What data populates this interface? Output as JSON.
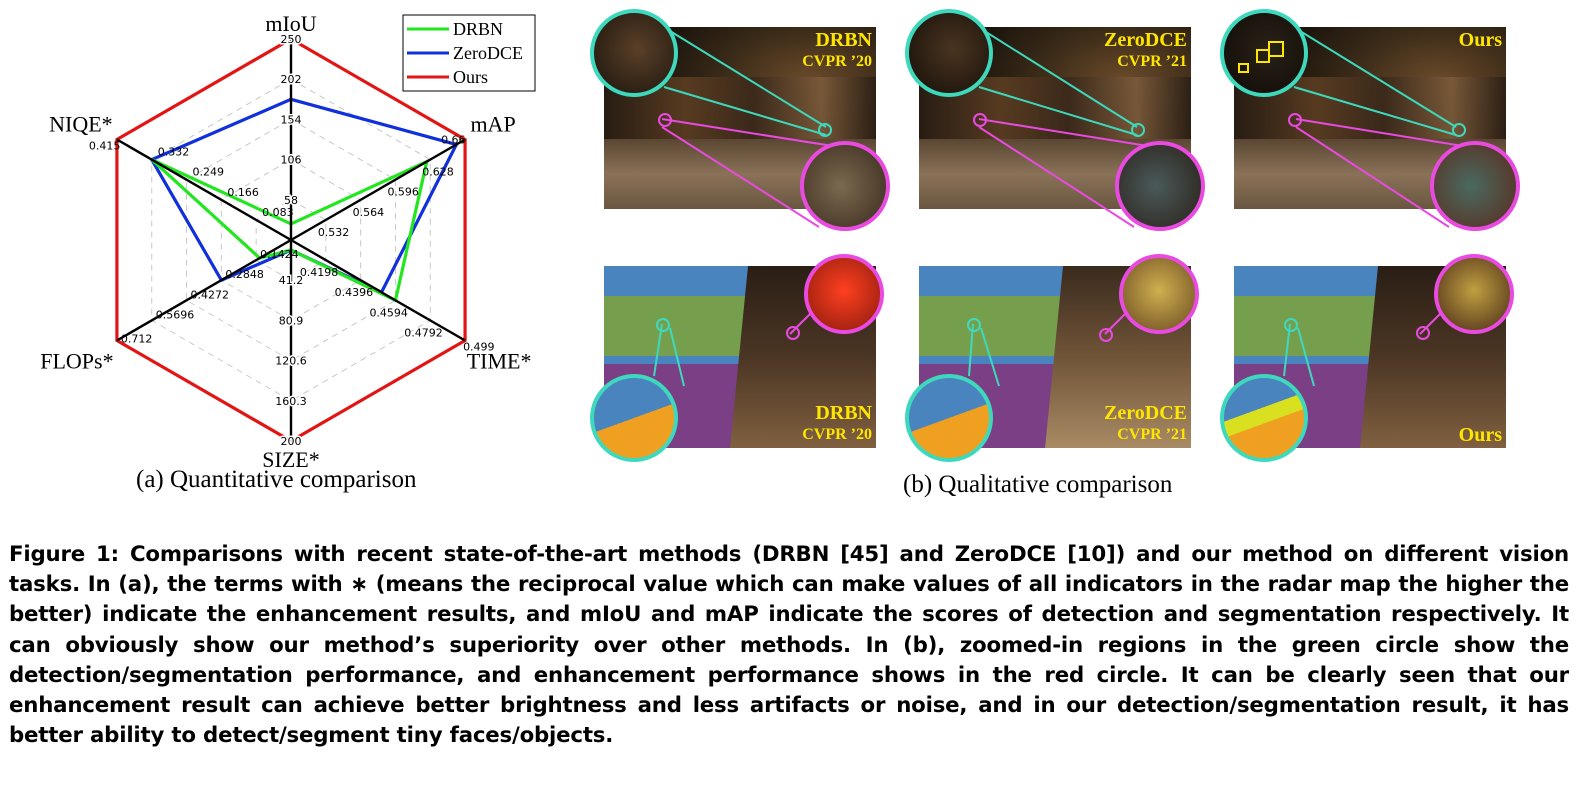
{
  "chart_data": {
    "type": "radar",
    "axes": [
      {
        "name": "mIoU",
        "ticks": [
          "58",
          "106",
          "154",
          "202",
          "250"
        ]
      },
      {
        "name": "mAP",
        "ticks": [
          "0.532",
          "0.564",
          "0.596",
          "0.628",
          "0.66"
        ]
      },
      {
        "name": "TIME*",
        "ticks": [
          "0.4198",
          "0.4396",
          "0.4594",
          "0.4792",
          "0.499"
        ]
      },
      {
        "name": "SIZE*",
        "ticks": [
          "41.2",
          "80.9",
          "120.6",
          "160.3",
          "200"
        ]
      },
      {
        "name": "FLOPs*",
        "ticks": [
          "0.1424",
          "0.2848",
          "0.4272",
          "0.5696",
          "0.712"
        ]
      },
      {
        "name": "NIQE*",
        "ticks": [
          "0.083",
          "0.166",
          "0.249",
          "0.332",
          "0.415"
        ]
      }
    ],
    "series": [
      {
        "name": "DRBN",
        "color": "#22e61e",
        "levels": [
          0.08,
          0.78,
          0.6,
          0.05,
          0.18,
          0.8
        ]
      },
      {
        "name": "ZeroDCE",
        "color": "#1030dc",
        "levels": [
          0.7,
          0.95,
          0.52,
          0.05,
          0.4,
          0.8
        ]
      },
      {
        "name": "Ours",
        "color": "#e31414",
        "levels": [
          1,
          1,
          1,
          1,
          1,
          1
        ]
      }
    ],
    "legend_position": "top-right"
  },
  "subcaption_a": "(a) Quantitative comparison",
  "subcaption_b": "(b) Qualitative comparison",
  "panels": {
    "drbn": {
      "method": "DRBN",
      "venue": "CVPR ’20"
    },
    "zerodce": {
      "method": "ZeroDCE",
      "venue": "CVPR ’21"
    },
    "ours": {
      "method": "Ours"
    }
  },
  "colors": {
    "ring_green": "#3ed9bd",
    "ring_magenta": "#e94ae0",
    "label_yellow": "#ffe600"
  },
  "caption": "Figure 1: Comparisons with recent state-of-the-art methods (DRBN [45] and ZeroDCE [10]) and our method on different vision tasks. In (a), the terms with ∗ (means the reciprocal value which can make values of all indicators in the radar map the higher the better) indicate the enhancement results, and mIoU and mAP indicate the scores of detection and segmentation respectively. It can obviously show our method’s superiority over other methods. In (b), zoomed-in regions in the green circle show the detection/segmentation performance, and enhancement performance shows in the red circle. It can be clearly seen that our enhancement result can achieve better brightness and less artifacts or noise, and in our detection/segmentation result, it has better ability to detect/segment tiny faces/objects."
}
